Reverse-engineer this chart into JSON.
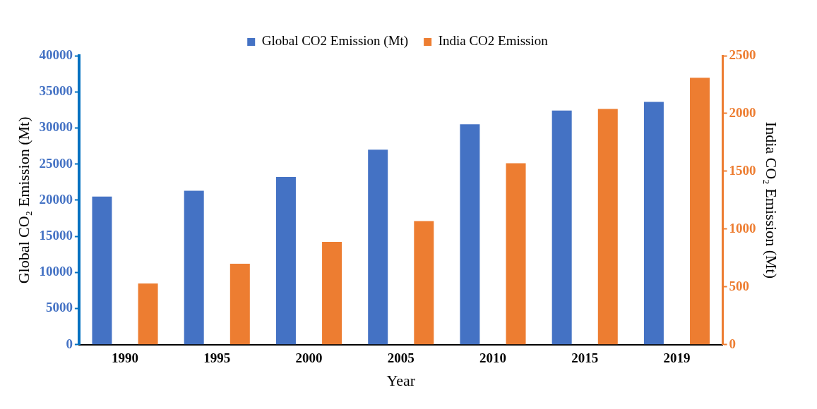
{
  "chart_data": {
    "type": "bar",
    "xlabel": "Year",
    "ylabel": "Global CO₂ Emission (Mt)",
    "y2label": "India CO₂ Emission (Mt)",
    "categories": [
      "1990",
      "1995",
      "2000",
      "2005",
      "2010",
      "2015",
      "2019"
    ],
    "series": [
      {
        "name": "Global CO2 Emission (Mt)",
        "color": "#4472c4",
        "values": [
          20500,
          21300,
          23200,
          27000,
          30500,
          32400,
          33600
        ]
      },
      {
        "name": "India CO2 Emission",
        "color": "#ed7d31",
        "axis": "y2",
        "values": [
          530,
          700,
          890,
          1070,
          1570,
          2040,
          2310
        ]
      }
    ],
    "ylim": [
      0,
      40000
    ],
    "yticks": [
      0,
      5000,
      10000,
      15000,
      20000,
      25000,
      30000,
      35000,
      40000
    ],
    "y2lim": [
      0,
      2500
    ],
    "y2ticks": [
      0,
      500,
      1000,
      1500,
      2000,
      2500
    ],
    "grid": false,
    "legend": "top"
  }
}
